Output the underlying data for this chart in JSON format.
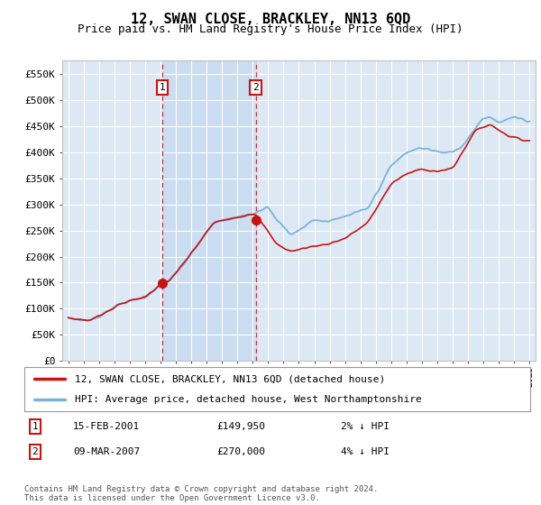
{
  "title": "12, SWAN CLOSE, BRACKLEY, NN13 6QD",
  "subtitle": "Price paid vs. HM Land Registry's House Price Index (HPI)",
  "ylim": [
    0,
    575000
  ],
  "yticks": [
    0,
    50000,
    100000,
    150000,
    200000,
    250000,
    300000,
    350000,
    400000,
    450000,
    500000,
    550000
  ],
  "ytick_labels": [
    "£0",
    "£50K",
    "£100K",
    "£150K",
    "£200K",
    "£250K",
    "£300K",
    "£350K",
    "£400K",
    "£450K",
    "£500K",
    "£550K"
  ],
  "background_color": "#ffffff",
  "plot_bg_color": "#dce9f5",
  "grid_color": "#ffffff",
  "hpi_line_color": "#7ab3d8",
  "price_line_color": "#cc1111",
  "fill_between_color": "#c5d8ee",
  "transaction1_date": 2001.12,
  "transaction1_price": 149950,
  "transaction2_date": 2007.19,
  "transaction2_price": 270000,
  "legend_label_red": "12, SWAN CLOSE, BRACKLEY, NN13 6QD (detached house)",
  "legend_label_blue": "HPI: Average price, detached house, West Northamptonshire",
  "table_row1": [
    "1",
    "15-FEB-2001",
    "£149,950",
    "2% ↓ HPI"
  ],
  "table_row2": [
    "2",
    "09-MAR-2007",
    "£270,000",
    "4% ↓ HPI"
  ],
  "footer": "Contains HM Land Registry data © Crown copyright and database right 2024.\nThis data is licensed under the Open Government Licence v3.0.",
  "title_fontsize": 11,
  "subtitle_fontsize": 9
}
